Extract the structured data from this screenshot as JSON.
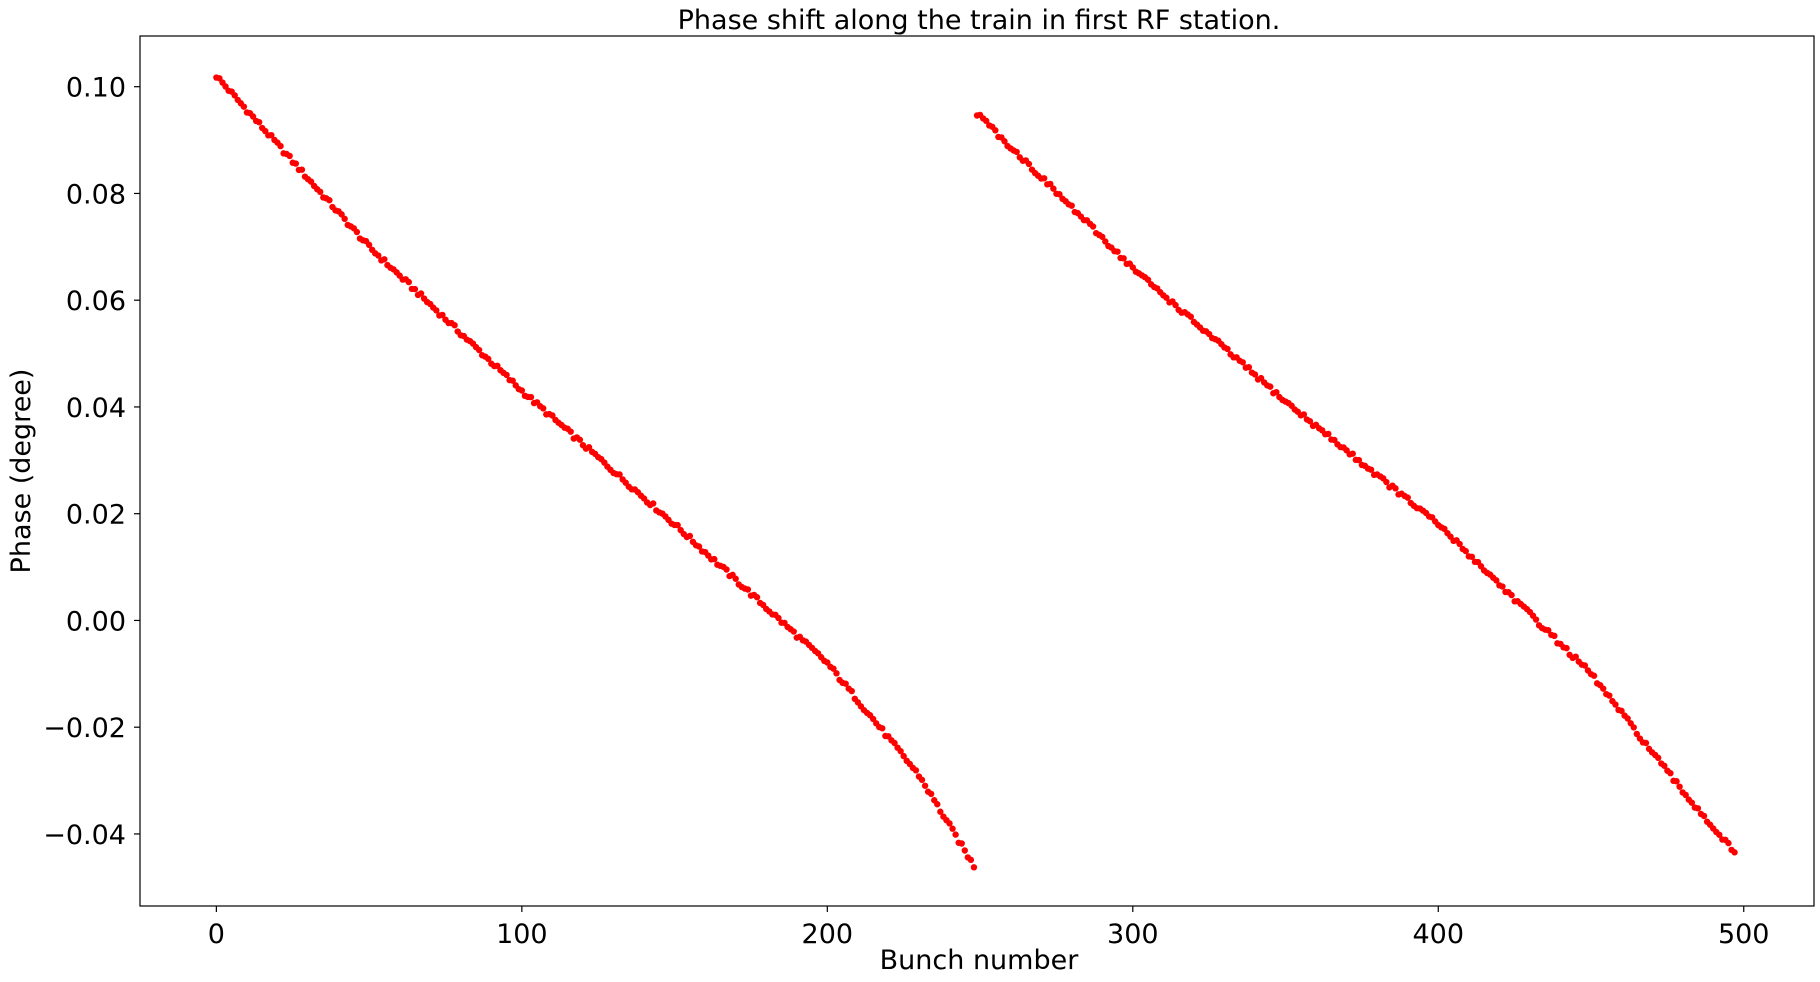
{
  "chart_data": {
    "type": "scatter",
    "title": "Phase shift along the train in first RF station.",
    "xlabel": "Bunch number",
    "ylabel": "Phase (degree)",
    "xlim": [
      -25,
      523
    ],
    "ylim": [
      -0.0535,
      0.1095
    ],
    "xticks": [
      0,
      100,
      200,
      300,
      400,
      500
    ],
    "xtick_labels": [
      "0",
      "100",
      "200",
      "300",
      "400",
      "500"
    ],
    "yticks": [
      -0.04,
      -0.02,
      0.0,
      0.02,
      0.04,
      0.06,
      0.08,
      0.1
    ],
    "ytick_labels": [
      "−0.04",
      "−0.02",
      "0.00",
      "0.02",
      "0.04",
      "0.06",
      "0.08",
      "0.10"
    ],
    "grid": false,
    "marker_color": "#ff0000",
    "series": [
      {
        "x_start": 0,
        "x_end": 248,
        "y_start": 0.102,
        "y_end": -0.046,
        "anchors": [
          [
            0,
            0.102
          ],
          [
            50,
            0.07
          ],
          [
            100,
            0.043
          ],
          [
            150,
            0.018
          ],
          [
            200,
            -0.008
          ],
          [
            230,
            -0.029
          ],
          [
            248,
            -0.046
          ]
        ]
      },
      {
        "x_start": 249,
        "x_end": 497,
        "y_start": 0.095,
        "y_end": -0.0435,
        "anchors": [
          [
            249,
            0.095
          ],
          [
            300,
            0.066
          ],
          [
            350,
            0.041
          ],
          [
            400,
            0.018
          ],
          [
            450,
            -0.01
          ],
          [
            480,
            -0.032
          ],
          [
            497,
            -0.0435
          ]
        ]
      }
    ]
  }
}
